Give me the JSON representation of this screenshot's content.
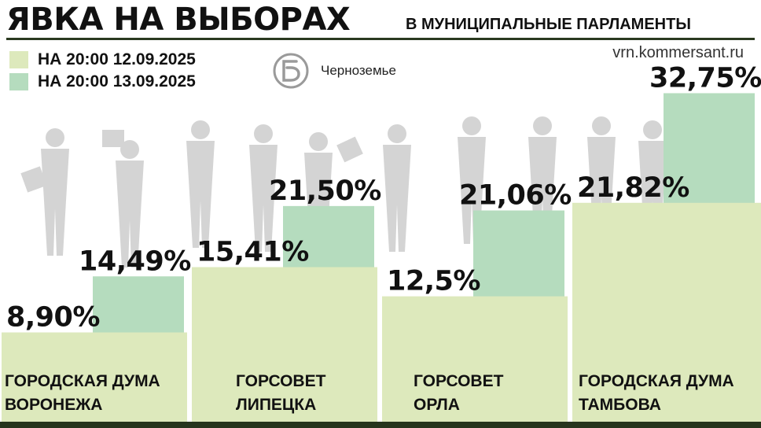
{
  "header": {
    "title": "ЯВКА НА ВЫБОРАХ",
    "subtitle": "В МУНИЦИПАЛЬНЫЕ ПАРЛАМЕНТЫ",
    "source": "vrn.kommersant.ru",
    "logo_caption": "Черноземье"
  },
  "colors": {
    "series_1": "#dde9bc",
    "series_2": "#b5dcbe",
    "text": "#111111",
    "bottom_bar": "#26351d",
    "silhouettes": "#d4d4d4"
  },
  "icons": [
    "kommersant-logo-icon",
    "people-silhouettes-icon"
  ],
  "chart_data": {
    "type": "bar",
    "categories": [
      [
        "ГОРОДСКАЯ ДУМА",
        "ВОРОНЕЖА"
      ],
      [
        "ГОРСОВЕТ",
        "ЛИПЕЦКА"
      ],
      [
        "ГОРСОВЕТ",
        "ОРЛА"
      ],
      [
        "ГОРОДСКАЯ ДУМА",
        "ТАМБОВА"
      ]
    ],
    "series": [
      {
        "name": "НА 20:00 12.09.2025",
        "values": [
          8.9,
          15.41,
          12.5,
          21.82
        ],
        "labels": [
          "8,90%",
          "15,41%",
          "12,5%",
          "21,82%"
        ]
      },
      {
        "name": "НА 20:00 13.09.2025",
        "values": [
          14.49,
          21.5,
          21.06,
          32.75
        ],
        "labels": [
          "14,49%",
          "21,50%",
          "21,06%",
          "32,75%"
        ]
      }
    ],
    "legend_position": "top-left",
    "grid": false
  }
}
